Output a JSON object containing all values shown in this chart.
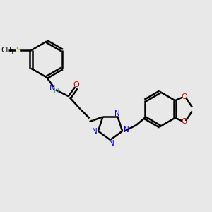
{
  "bg_color": "#e8e8e8",
  "black": "#000000",
  "blue": "#0000ee",
  "red": "#cc0000",
  "yellow": "#999900",
  "teal": "#449999",
  "bond_lw": 1.8,
  "figsize": [
    3.0,
    3.0
  ],
  "dpi": 100,
  "xlim": [
    0,
    10
  ],
  "ylim": [
    0,
    10
  ]
}
